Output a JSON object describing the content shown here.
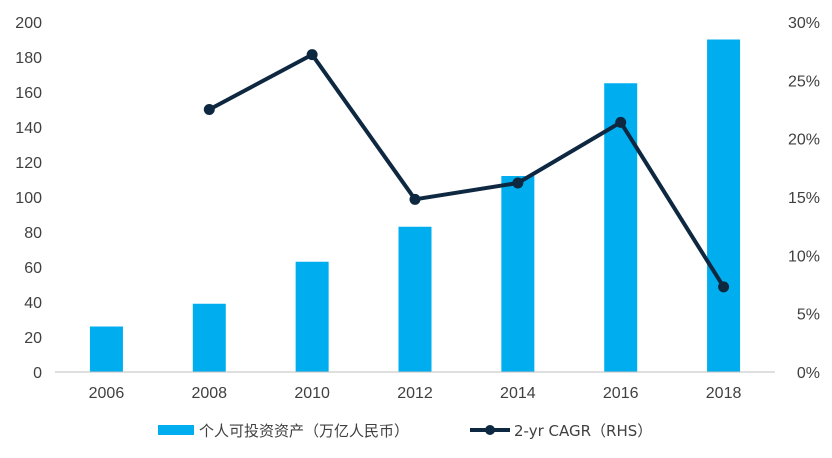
{
  "chart_data": {
    "type": "bar",
    "categories": [
      "2006",
      "2008",
      "2010",
      "2012",
      "2014",
      "2016",
      "2018"
    ],
    "series": [
      {
        "name": "个人可投资资产（万亿人民币）",
        "type": "bar",
        "axis": "left",
        "color": "#00AEEF",
        "values": [
          26,
          39,
          63,
          83,
          112,
          165,
          190
        ]
      },
      {
        "name": "2-yr CAGR（RHS）",
        "type": "line",
        "axis": "right",
        "color": "#0E2841",
        "values": [
          null,
          22.5,
          27.2,
          14.8,
          16.2,
          21.4,
          7.3
        ]
      }
    ],
    "y_left": {
      "min": 0,
      "max": 200,
      "ticks": [
        "0",
        "20",
        "40",
        "60",
        "80",
        "100",
        "120",
        "140",
        "160",
        "180",
        "200"
      ]
    },
    "y_right": {
      "min": 0,
      "max": 30,
      "ticks": [
        "0%",
        "5%",
        "10%",
        "15%",
        "20%",
        "25%",
        "30%"
      ]
    },
    "legend_position": "bottom",
    "grid": false
  }
}
